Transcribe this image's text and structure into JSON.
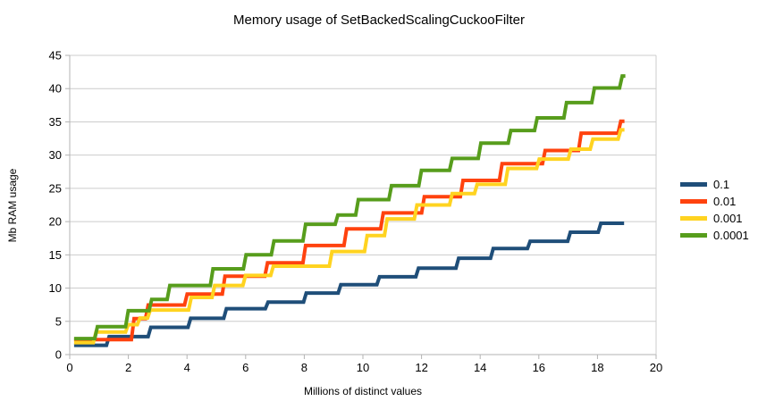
{
  "chart_data": {
    "type": "line",
    "line_style": "step",
    "title": "Memory usage of SetBackedScalingCuckooFilter",
    "xlabel": "Millions of distinct values",
    "ylabel": "Mb RAM usage",
    "xlim": [
      0,
      20
    ],
    "ylim": [
      0,
      45
    ],
    "xticks": [
      0,
      2,
      4,
      6,
      8,
      10,
      12,
      14,
      16,
      18,
      20
    ],
    "yticks": [
      0,
      5,
      10,
      15,
      20,
      25,
      30,
      35,
      40,
      45
    ],
    "grid": "horizontal",
    "legend_position": "right",
    "series": [
      {
        "name": "0.1",
        "color": "#1F4E79",
        "x_end": 18.91,
        "steps": [
          [
            0.15,
            1.4
          ],
          [
            1.3,
            2.7
          ],
          [
            2.72,
            4.1
          ],
          [
            4.08,
            5.45
          ],
          [
            5.3,
            6.9
          ],
          [
            6.72,
            7.9
          ],
          [
            8.02,
            9.25
          ],
          [
            9.2,
            10.5
          ],
          [
            10.52,
            11.7
          ],
          [
            11.85,
            13.0
          ],
          [
            13.22,
            14.5
          ],
          [
            14.4,
            15.95
          ],
          [
            15.66,
            17.05
          ],
          [
            17.03,
            18.4
          ],
          [
            18.07,
            19.75
          ]
        ]
      },
      {
        "name": "0.01",
        "color": "#FF420E",
        "x_end": 18.92,
        "steps": [
          [
            0.15,
            2.25
          ],
          [
            2.15,
            5.4
          ],
          [
            2.63,
            7.45
          ],
          [
            3.96,
            9.1
          ],
          [
            5.25,
            11.8
          ],
          [
            6.7,
            13.8
          ],
          [
            8.0,
            16.4
          ],
          [
            9.4,
            18.9
          ],
          [
            10.65,
            21.3
          ],
          [
            12.05,
            23.75
          ],
          [
            13.37,
            26.2
          ],
          [
            14.7,
            28.7
          ],
          [
            16.17,
            30.7
          ],
          [
            17.4,
            33.3
          ],
          [
            18.75,
            35.1
          ]
        ]
      },
      {
        "name": "0.001",
        "color": "#FFD320",
        "x_end": 18.92,
        "steps": [
          [
            0.15,
            1.8
          ],
          [
            0.85,
            3.4
          ],
          [
            1.95,
            4.5
          ],
          [
            2.35,
            5.5
          ],
          [
            2.7,
            6.7
          ],
          [
            4.1,
            8.6
          ],
          [
            4.9,
            10.4
          ],
          [
            5.95,
            11.9
          ],
          [
            6.9,
            13.3
          ],
          [
            8.9,
            15.5
          ],
          [
            10.1,
            17.9
          ],
          [
            10.78,
            20.4
          ],
          [
            11.8,
            22.5
          ],
          [
            13.0,
            24.2
          ],
          [
            13.85,
            25.6
          ],
          [
            14.9,
            28.0
          ],
          [
            15.97,
            29.4
          ],
          [
            17.05,
            30.9
          ],
          [
            17.8,
            32.4
          ],
          [
            18.75,
            33.8
          ]
        ]
      },
      {
        "name": "0.0001",
        "color": "#579D1C",
        "x_end": 18.95,
        "steps": [
          [
            0.15,
            2.4
          ],
          [
            0.9,
            4.2
          ],
          [
            1.95,
            6.6
          ],
          [
            2.75,
            8.3
          ],
          [
            3.37,
            10.4
          ],
          [
            4.84,
            12.9
          ],
          [
            5.97,
            15.0
          ],
          [
            6.92,
            17.1
          ],
          [
            8.0,
            19.6
          ],
          [
            9.1,
            21.0
          ],
          [
            9.8,
            23.3
          ],
          [
            10.93,
            25.4
          ],
          [
            11.95,
            27.7
          ],
          [
            13.0,
            29.5
          ],
          [
            13.98,
            31.8
          ],
          [
            15.0,
            33.7
          ],
          [
            15.9,
            35.6
          ],
          [
            16.9,
            37.9
          ],
          [
            17.85,
            40.1
          ],
          [
            18.8,
            41.9
          ]
        ]
      }
    ],
    "colors": {
      "gridline": "#CCCCCC",
      "axis": "#B3B3B3",
      "background": "#FFFFFF",
      "text": "#000000"
    }
  },
  "legend": {
    "items": [
      {
        "label": "0.1",
        "color": "#1F4E79"
      },
      {
        "label": "0.01",
        "color": "#FF420E"
      },
      {
        "label": "0.001",
        "color": "#FFD320"
      },
      {
        "label": "0.0001",
        "color": "#579D1C"
      }
    ]
  }
}
